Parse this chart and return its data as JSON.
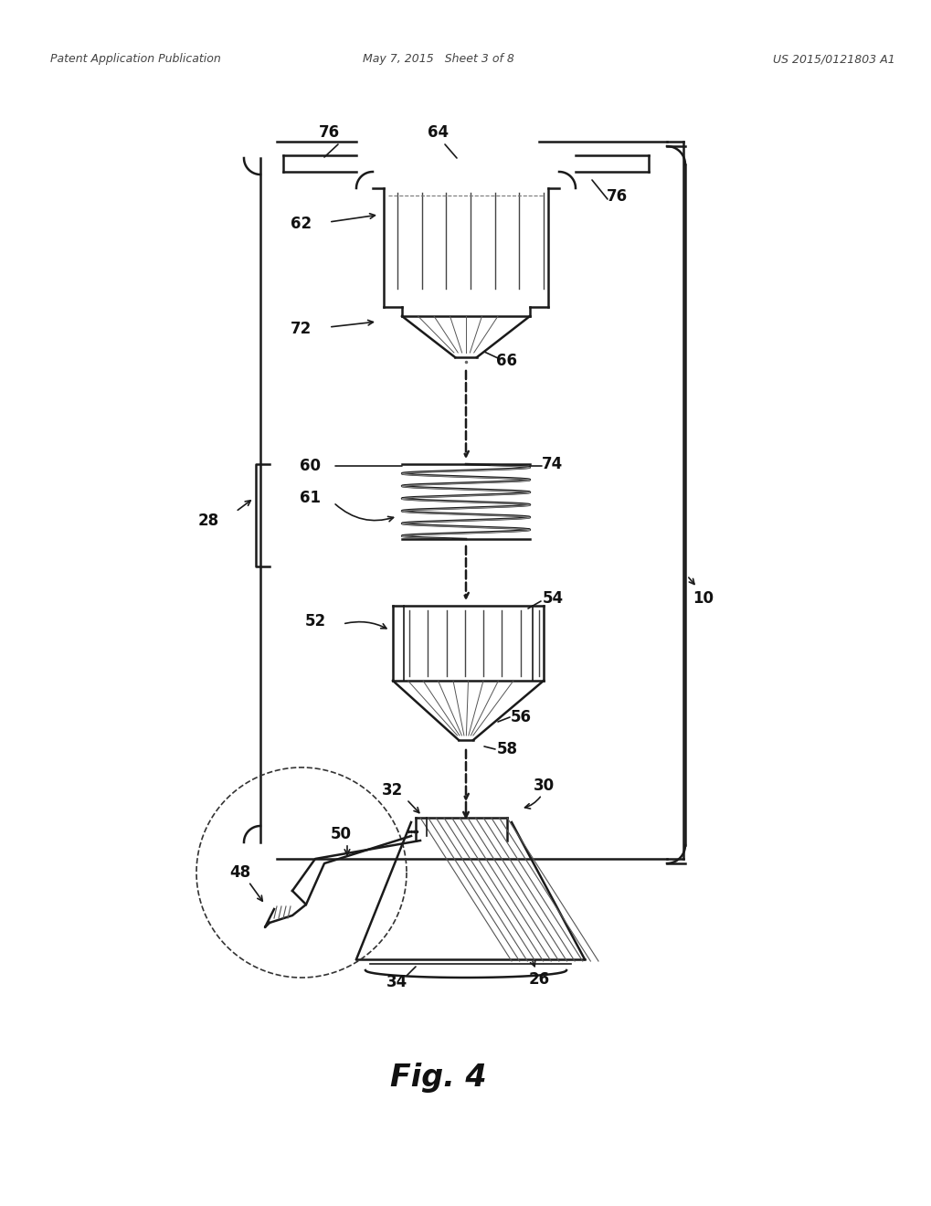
{
  "title": "Fig. 4",
  "header_left": "Patent Application Publication",
  "header_center": "May 7, 2015   Sheet 3 of 8",
  "header_right": "US 2015/0121803 A1",
  "bg_color": "#ffffff",
  "line_color": "#1a1a1a",
  "label_color": "#111111",
  "fig_width": 10.2,
  "fig_height": 13.2,
  "dpi": 100
}
